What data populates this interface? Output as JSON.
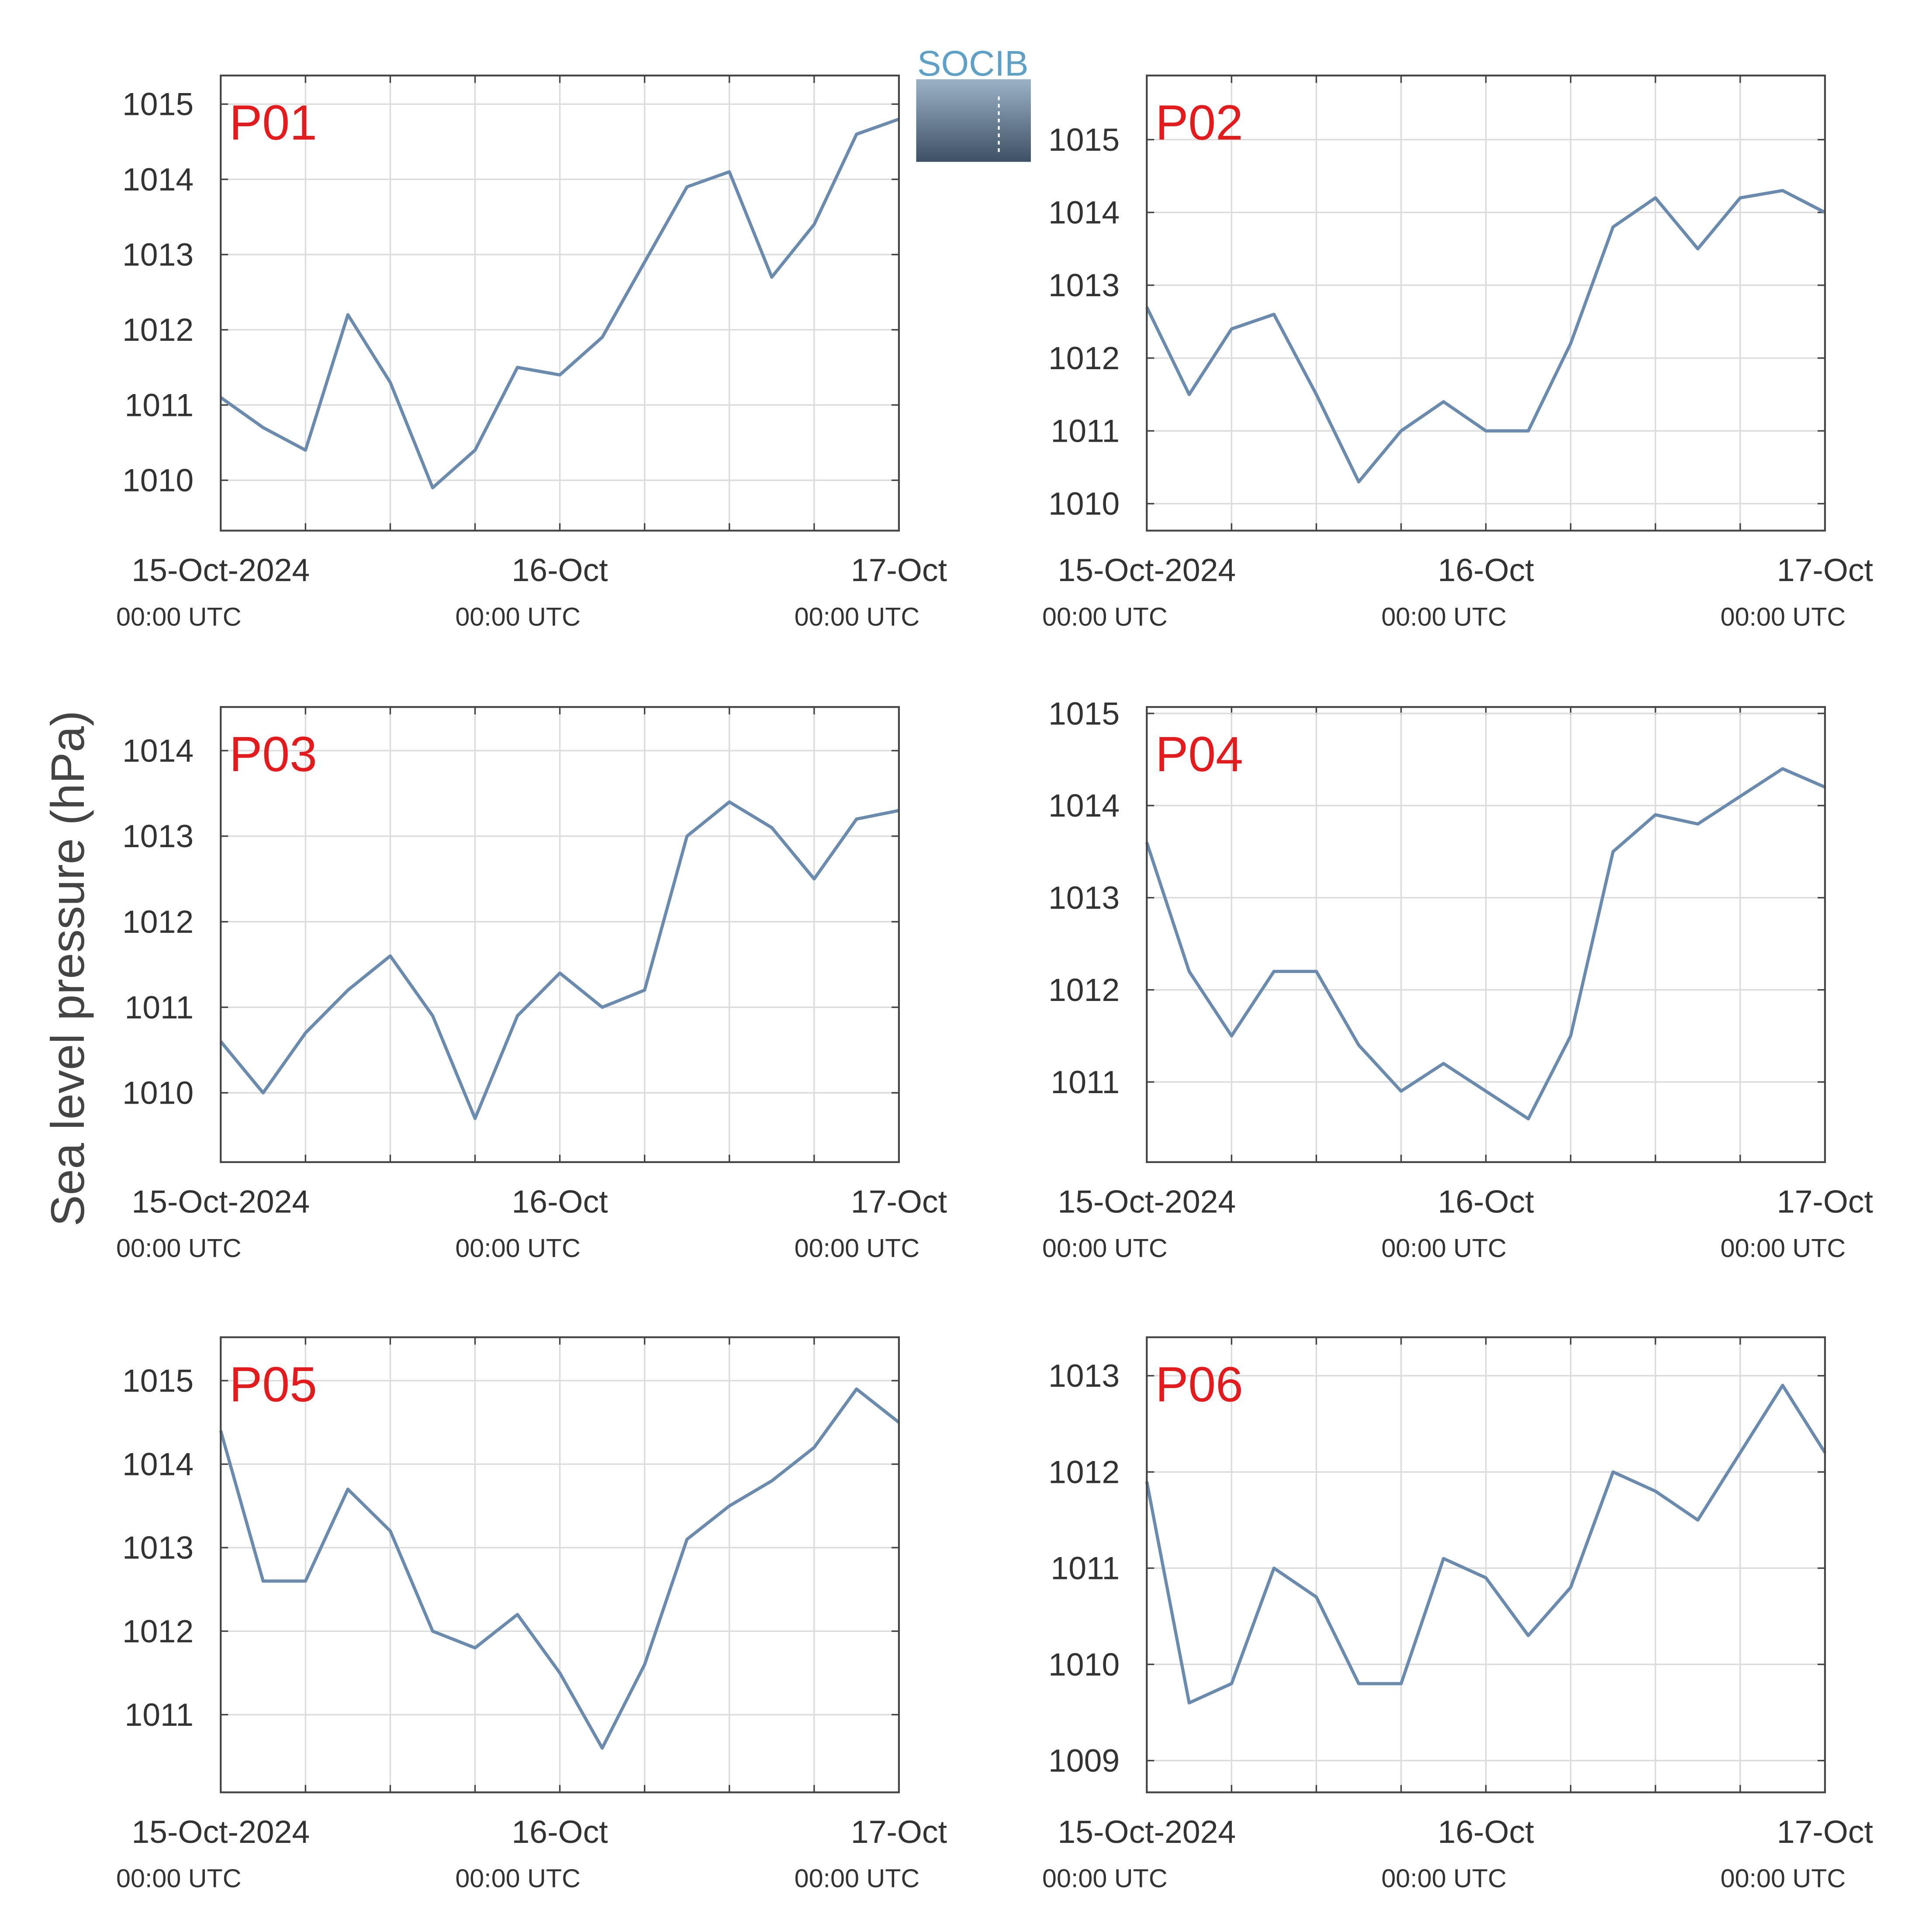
{
  "ylabel": "Sea level pressure (hPa)",
  "logo": "SOCIB",
  "x": [
    "2024-10-15T00:00",
    "2024-10-15T03:00",
    "2024-10-15T06:00",
    "2024-10-15T09:00",
    "2024-10-15T12:00",
    "2024-10-15T15:00",
    "2024-10-15T18:00",
    "2024-10-15T21:00",
    "2024-10-16T00:00",
    "2024-10-16T03:00",
    "2024-10-16T06:00",
    "2024-10-16T09:00",
    "2024-10-16T12:00",
    "2024-10-16T15:00",
    "2024-10-16T18:00",
    "2024-10-16T21:00",
    "2024-10-17T00:00"
  ],
  "xlim": [
    "2024-10-15T00:00",
    "2024-10-17T00:00"
  ],
  "xticks": [
    {
      "value": "2024-10-15T00:00",
      "label": [
        "15-Oct-2024",
        "00:00 UTC"
      ]
    },
    {
      "value": "2024-10-15T06:00"
    },
    {
      "value": "2024-10-15T12:00"
    },
    {
      "value": "2024-10-15T18:00"
    },
    {
      "value": "2024-10-16T00:00",
      "label": [
        "16-Oct",
        "00:00 UTC"
      ]
    },
    {
      "value": "2024-10-16T06:00"
    },
    {
      "value": "2024-10-16T12:00"
    },
    {
      "value": "2024-10-16T18:00"
    },
    {
      "value": "2024-10-17T00:00",
      "label": [
        "17-Oct",
        "00:00 UTC"
      ]
    }
  ],
  "grid": true,
  "chart_data": [
    {
      "type": "line",
      "title": "P01",
      "color": "#6a8bad",
      "ylim": [
        1009.33,
        1015.38
      ],
      "yticks": [
        1010,
        1011,
        1012,
        1013,
        1014,
        1015
      ],
      "values": [
        1011.1,
        1010.7,
        1010.4,
        1012.2,
        1011.3,
        1009.9,
        1010.4,
        1011.5,
        1011.4,
        1011.9,
        1012.9,
        1013.9,
        1014.1,
        1012.7,
        1013.4,
        1014.6,
        1014.8
      ]
    },
    {
      "type": "line",
      "title": "P02",
      "color": "#6a8bad",
      "ylim": [
        1009.63,
        1015.88
      ],
      "yticks": [
        1010,
        1011,
        1012,
        1013,
        1014,
        1015
      ],
      "values": [
        1012.7,
        1011.5,
        1012.4,
        1012.6,
        1011.5,
        1010.3,
        1011.0,
        1011.4,
        1011.0,
        1011.0,
        1012.2,
        1013.8,
        1014.2,
        1013.5,
        1014.2,
        1014.3,
        1014.0
      ]
    },
    {
      "type": "line",
      "title": "P03",
      "color": "#6a8bad",
      "ylim": [
        1009.19,
        1014.51
      ],
      "yticks": [
        1010,
        1011,
        1012,
        1013,
        1014
      ],
      "values": [
        1010.6,
        1010.0,
        1010.7,
        1011.2,
        1011.6,
        1010.9,
        1009.7,
        1010.9,
        1011.4,
        1011.0,
        1011.2,
        1013.0,
        1013.4,
        1013.1,
        1012.5,
        1013.2,
        1013.3
      ]
    },
    {
      "type": "line",
      "title": "P04",
      "color": "#6a8bad",
      "ylim": [
        1010.13,
        1015.07
      ],
      "yticks": [
        1011,
        1012,
        1013,
        1014,
        1015
      ],
      "values": [
        1013.6,
        1012.2,
        1011.5,
        1012.2,
        1012.2,
        1011.4,
        1010.9,
        1011.2,
        1010.9,
        1010.6,
        1011.5,
        1013.5,
        1013.9,
        1013.8,
        1014.1,
        1014.4,
        1014.2
      ]
    },
    {
      "type": "line",
      "title": "P05",
      "color": "#6a8bad",
      "ylim": [
        1010.07,
        1015.52
      ],
      "yticks": [
        1011,
        1012,
        1013,
        1014,
        1015
      ],
      "values": [
        1014.4,
        1012.6,
        1012.6,
        1013.7,
        1013.2,
        1012.0,
        1011.8,
        1012.2,
        1011.5,
        1010.6,
        1011.6,
        1013.1,
        1013.5,
        1013.8,
        1014.2,
        1014.9,
        1014.5
      ]
    },
    {
      "type": "line",
      "title": "P06",
      "color": "#6a8bad",
      "ylim": [
        1008.67,
        1013.4
      ],
      "yticks": [
        1009,
        1010,
        1011,
        1012,
        1013
      ],
      "values": [
        1011.9,
        1009.6,
        1009.8,
        1011.0,
        1010.7,
        1009.8,
        1009.8,
        1011.1,
        1010.9,
        1010.3,
        1010.8,
        1012.0,
        1011.8,
        1011.5,
        1012.2,
        1012.9,
        1012.2
      ]
    }
  ]
}
